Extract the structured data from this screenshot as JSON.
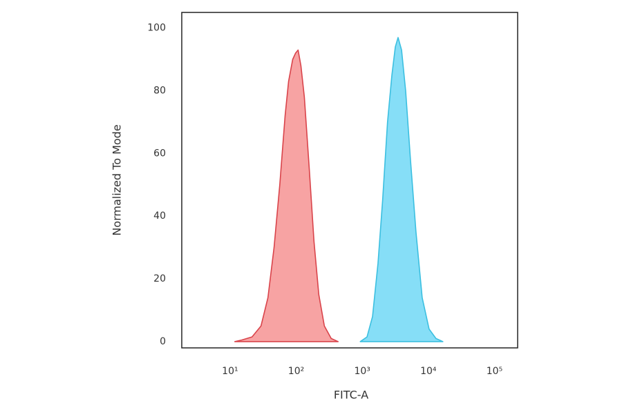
{
  "chart_data": {
    "type": "area",
    "x_label": "FITC-A",
    "y_label": "Normalized To Mode",
    "xscale": "log",
    "xlim": [
      1.86,
      224000
    ],
    "ylim": [
      -2,
      105
    ],
    "xticks": [
      {
        "value": 10,
        "label": "10¹"
      },
      {
        "value": 100,
        "label": "10²"
      },
      {
        "value": 1000,
        "label": "10³"
      },
      {
        "value": 10000,
        "label": "10⁴"
      },
      {
        "value": 100000,
        "label": "10⁵"
      }
    ],
    "yticks": [
      0,
      20,
      40,
      60,
      80,
      100
    ],
    "grid": false,
    "series": [
      {
        "color": "#d9434a",
        "fill": "#f7a3a3",
        "x": [
          11.8,
          15,
          21.5,
          29.4,
          37.4,
          46.3,
          56.5,
          68,
          76.8,
          88.6,
          97.8,
          107,
          118,
          133,
          158,
          186,
          220,
          267,
          339,
          431
        ],
        "values": [
          0,
          0.5,
          1.5,
          5,
          14,
          30,
          50,
          72,
          83,
          90,
          92,
          93,
          88,
          78,
          55,
          32,
          15,
          5,
          1,
          0
        ]
      },
      {
        "color": "#3bbfe0",
        "fill": "#86def7",
        "x": [
          932,
          1180,
          1430,
          1730,
          2030,
          2410,
          2806,
          3162,
          3480,
          3930,
          4530,
          5360,
          6490,
          8060,
          10250,
          13020,
          16560
        ],
        "values": [
          0,
          1.5,
          8,
          25,
          45,
          70,
          85,
          94,
          97,
          93,
          80,
          58,
          35,
          14,
          4,
          1,
          0
        ]
      }
    ]
  }
}
